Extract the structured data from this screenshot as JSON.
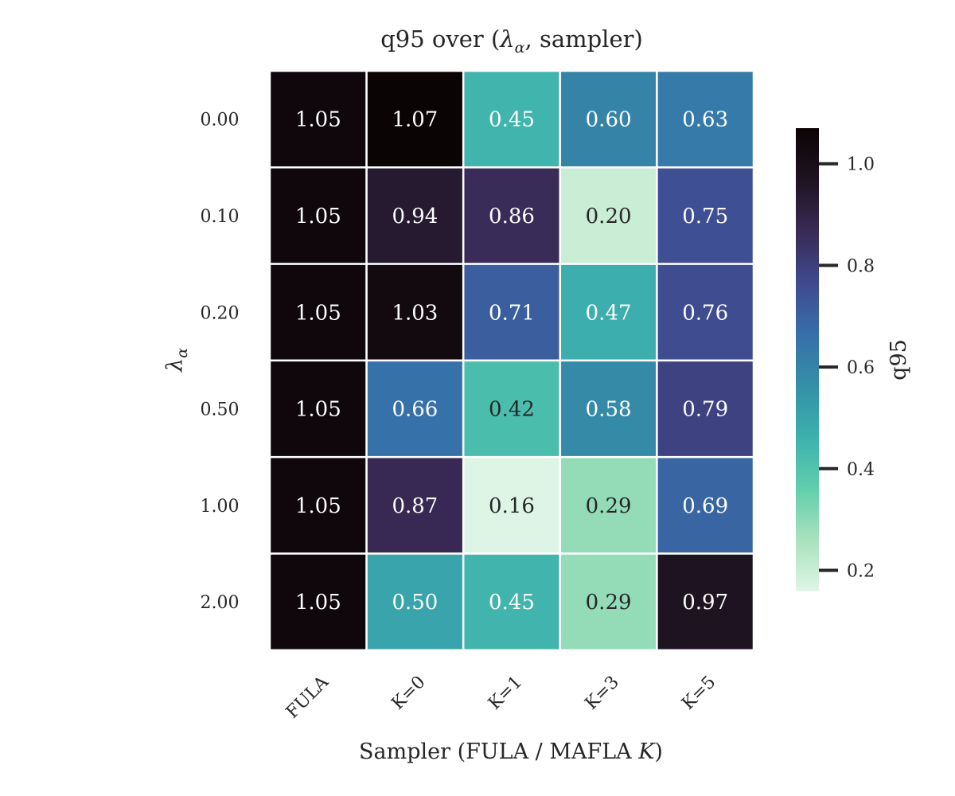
{
  "chart_data": {
    "type": "heatmap",
    "title_prefix": "q95 over (",
    "title_symbol": "λ",
    "title_subscript": "α",
    "title_suffix": ", sampler)",
    "xlabel_prefix": "Sampler (FULA / MAFLA ",
    "xlabel_symbol": "K",
    "xlabel_suffix": ")",
    "ylabel_symbol": "λ",
    "ylabel_subscript": "α",
    "x_categories": [
      "FULA",
      "K=0",
      "K=1",
      "K=3",
      "K=5"
    ],
    "y_categories": [
      "0.00",
      "0.10",
      "0.20",
      "0.50",
      "1.00",
      "2.00"
    ],
    "values": [
      [
        1.05,
        1.07,
        0.45,
        0.6,
        0.63
      ],
      [
        1.05,
        0.94,
        0.86,
        0.2,
        0.75
      ],
      [
        1.05,
        1.03,
        0.71,
        0.47,
        0.76
      ],
      [
        1.05,
        0.66,
        0.42,
        0.58,
        0.79
      ],
      [
        1.05,
        0.87,
        0.16,
        0.29,
        0.69
      ],
      [
        1.05,
        0.5,
        0.45,
        0.29,
        0.97
      ]
    ],
    "value_format_decimals": 2,
    "colormap": "mako_r",
    "vmin": 0.16,
    "vmax": 1.07,
    "colorbar": {
      "label": "q95",
      "ticks": [
        0.2,
        0.4,
        0.6,
        0.8,
        1.0
      ],
      "tick_labels": [
        "0.2",
        "0.4",
        "0.6",
        "0.8",
        "1.0"
      ]
    },
    "colors": {
      "cmap_stops": [
        "#def5e5",
        "#a8e1bc",
        "#60ceac",
        "#3cb0ad",
        "#348fa7",
        "#376faa",
        "#40498e",
        "#382a54",
        "#1e1321",
        "#0b0405"
      ],
      "grid_line": "#ffffff",
      "light_text": "#ffffff",
      "dark_text": "#262626"
    }
  }
}
